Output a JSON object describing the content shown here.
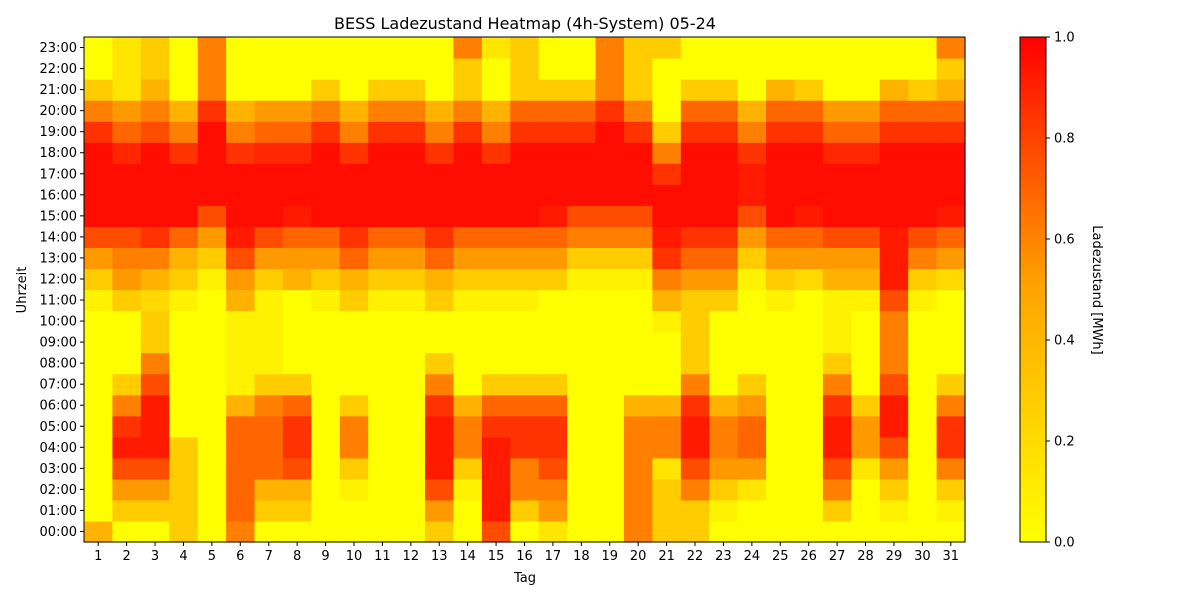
{
  "chart_data": {
    "type": "heatmap",
    "title": "BESS Ladezustand Heatmap (4h-System) 05-24",
    "xlabel": "Tag",
    "ylabel": "Uhrzeit",
    "colorbar_label": "Ladezustand [MWh]",
    "colormap": [
      "#ffff00",
      "#ffa500",
      "#ff0000"
    ],
    "value_range": [
      0,
      1
    ],
    "colorbar_ticks": [
      "0.0",
      "0.2",
      "0.4",
      "0.6",
      "0.8",
      "1.0"
    ],
    "x_ticks": [
      "1",
      "2",
      "3",
      "4",
      "5",
      "6",
      "7",
      "8",
      "9",
      "10",
      "11",
      "12",
      "13",
      "14",
      "15",
      "16",
      "17",
      "18",
      "19",
      "20",
      "21",
      "22",
      "23",
      "24",
      "25",
      "26",
      "27",
      "28",
      "29",
      "30",
      "31"
    ],
    "y_ticks": [
      "00:00",
      "01:00",
      "02:00",
      "03:00",
      "04:00",
      "05:00",
      "06:00",
      "07:00",
      "08:00",
      "09:00",
      "10:00",
      "11:00",
      "12:00",
      "13:00",
      "14:00",
      "15:00",
      "16:00",
      "17:00",
      "18:00",
      "19:00",
      "20:00",
      "21:00",
      "22:00",
      "23:00"
    ],
    "values": [
      [
        0.3,
        0.0,
        0.0,
        0.2,
        0.0,
        0.5,
        0.0,
        0.0,
        0.0,
        0.0,
        0.0,
        0.0,
        0.2,
        0.0,
        0.7,
        0.0,
        0.1,
        0.0,
        0.0,
        0.5,
        0.2,
        0.2,
        0.0,
        0.0,
        0.0,
        0.0,
        0.0,
        0.0,
        0.0,
        0.0,
        0.0
      ],
      [
        0.0,
        0.2,
        0.2,
        0.2,
        0.0,
        0.6,
        0.2,
        0.2,
        0.0,
        0.0,
        0.0,
        0.0,
        0.4,
        0.0,
        0.9,
        0.2,
        0.4,
        0.0,
        0.0,
        0.5,
        0.2,
        0.2,
        0.05,
        0.0,
        0.0,
        0.0,
        0.2,
        0.0,
        0.05,
        0.0,
        0.05
      ],
      [
        0.0,
        0.4,
        0.4,
        0.2,
        0.0,
        0.6,
        0.3,
        0.3,
        0.0,
        0.05,
        0.0,
        0.0,
        0.7,
        0.05,
        0.9,
        0.5,
        0.5,
        0.0,
        0.0,
        0.5,
        0.2,
        0.5,
        0.2,
        0.1,
        0.0,
        0.0,
        0.5,
        0.0,
        0.2,
        0.0,
        0.2
      ],
      [
        0.0,
        0.7,
        0.7,
        0.2,
        0.0,
        0.6,
        0.6,
        0.7,
        0.0,
        0.2,
        0.0,
        0.0,
        0.9,
        0.2,
        0.9,
        0.5,
        0.7,
        0.0,
        0.0,
        0.5,
        0.1,
        0.7,
        0.4,
        0.4,
        0.0,
        0.0,
        0.7,
        0.1,
        0.4,
        0.0,
        0.5
      ],
      [
        0.0,
        0.9,
        0.9,
        0.2,
        0.0,
        0.6,
        0.6,
        0.8,
        0.0,
        0.5,
        0.0,
        0.0,
        0.9,
        0.5,
        0.9,
        0.8,
        0.8,
        0.0,
        0.0,
        0.5,
        0.5,
        0.9,
        0.5,
        0.6,
        0.0,
        0.0,
        0.9,
        0.4,
        0.7,
        0.0,
        0.8
      ],
      [
        0.0,
        0.8,
        0.9,
        0.0,
        0.0,
        0.6,
        0.6,
        0.8,
        0.0,
        0.5,
        0.0,
        0.0,
        0.9,
        0.5,
        0.8,
        0.8,
        0.8,
        0.0,
        0.0,
        0.5,
        0.5,
        0.9,
        0.5,
        0.6,
        0.0,
        0.0,
        0.9,
        0.4,
        0.9,
        0.0,
        0.8
      ],
      [
        0.0,
        0.5,
        0.9,
        0.0,
        0.0,
        0.3,
        0.5,
        0.6,
        0.0,
        0.2,
        0.0,
        0.0,
        0.8,
        0.3,
        0.6,
        0.6,
        0.6,
        0.0,
        0.0,
        0.3,
        0.3,
        0.8,
        0.3,
        0.4,
        0.0,
        0.0,
        0.8,
        0.2,
        0.9,
        0.0,
        0.5
      ],
      [
        0.0,
        0.2,
        0.7,
        0.0,
        0.0,
        0.05,
        0.2,
        0.2,
        0.0,
        0.0,
        0.0,
        0.0,
        0.5,
        0.0,
        0.2,
        0.2,
        0.2,
        0.0,
        0.0,
        0.0,
        0.0,
        0.5,
        0.0,
        0.2,
        0.0,
        0.0,
        0.5,
        0.0,
        0.7,
        0.0,
        0.2
      ],
      [
        0.0,
        0.0,
        0.5,
        0.0,
        0.0,
        0.05,
        0.05,
        0.0,
        0.0,
        0.0,
        0.0,
        0.0,
        0.2,
        0.0,
        0.0,
        0.0,
        0.0,
        0.0,
        0.0,
        0.0,
        0.0,
        0.2,
        0.0,
        0.0,
        0.0,
        0.0,
        0.2,
        0.0,
        0.5,
        0.0,
        0.0
      ],
      [
        0.0,
        0.0,
        0.2,
        0.0,
        0.0,
        0.05,
        0.05,
        0.0,
        0.0,
        0.0,
        0.0,
        0.0,
        0.0,
        0.0,
        0.0,
        0.0,
        0.0,
        0.0,
        0.0,
        0.0,
        0.0,
        0.2,
        0.0,
        0.0,
        0.0,
        0.0,
        0.05,
        0.0,
        0.5,
        0.0,
        0.0
      ],
      [
        0.0,
        0.0,
        0.2,
        0.0,
        0.0,
        0.05,
        0.05,
        0.0,
        0.0,
        0.0,
        0.0,
        0.0,
        0.0,
        0.0,
        0.0,
        0.0,
        0.0,
        0.0,
        0.0,
        0.0,
        0.05,
        0.2,
        0.0,
        0.0,
        0.0,
        0.0,
        0.05,
        0.0,
        0.5,
        0.0,
        0.0
      ],
      [
        0.05,
        0.2,
        0.15,
        0.05,
        0.0,
        0.3,
        0.05,
        0.0,
        0.05,
        0.2,
        0.05,
        0.05,
        0.2,
        0.05,
        0.05,
        0.05,
        0.0,
        0.0,
        0.0,
        0.0,
        0.3,
        0.2,
        0.2,
        0.0,
        0.05,
        0.0,
        0.05,
        0.05,
        0.7,
        0.05,
        0.0
      ],
      [
        0.2,
        0.4,
        0.3,
        0.2,
        0.05,
        0.4,
        0.2,
        0.3,
        0.2,
        0.3,
        0.2,
        0.2,
        0.3,
        0.2,
        0.2,
        0.2,
        0.2,
        0.05,
        0.05,
        0.05,
        0.5,
        0.4,
        0.4,
        0.05,
        0.2,
        0.15,
        0.3,
        0.3,
        0.9,
        0.2,
        0.15
      ],
      [
        0.4,
        0.5,
        0.5,
        0.3,
        0.2,
        0.7,
        0.4,
        0.4,
        0.4,
        0.6,
        0.4,
        0.4,
        0.6,
        0.4,
        0.4,
        0.4,
        0.4,
        0.2,
        0.2,
        0.2,
        0.8,
        0.6,
        0.6,
        0.2,
        0.4,
        0.4,
        0.4,
        0.4,
        0.9,
        0.5,
        0.4
      ],
      [
        0.7,
        0.7,
        0.8,
        0.6,
        0.4,
        0.9,
        0.7,
        0.6,
        0.6,
        0.8,
        0.6,
        0.6,
        0.8,
        0.6,
        0.6,
        0.6,
        0.6,
        0.5,
        0.5,
        0.5,
        0.9,
        0.8,
        0.8,
        0.4,
        0.6,
        0.6,
        0.7,
        0.7,
        0.9,
        0.7,
        0.6
      ],
      [
        0.95,
        0.95,
        0.95,
        0.95,
        0.7,
        0.95,
        0.95,
        0.9,
        0.95,
        0.95,
        0.95,
        0.95,
        0.95,
        0.95,
        0.95,
        0.95,
        0.9,
        0.7,
        0.7,
        0.7,
        0.95,
        0.95,
        0.95,
        0.7,
        0.95,
        0.9,
        0.95,
        0.95,
        0.95,
        0.95,
        0.9
      ],
      [
        0.95,
        0.95,
        0.95,
        0.95,
        0.95,
        0.95,
        0.95,
        0.95,
        0.95,
        0.95,
        0.95,
        0.95,
        0.95,
        0.95,
        0.95,
        0.95,
        0.95,
        0.95,
        0.95,
        0.95,
        0.95,
        0.95,
        0.95,
        0.9,
        0.95,
        0.95,
        0.95,
        0.95,
        0.95,
        0.95,
        0.95
      ],
      [
        0.95,
        0.95,
        0.95,
        0.95,
        0.95,
        0.95,
        0.95,
        0.95,
        0.95,
        0.95,
        0.95,
        0.95,
        0.95,
        0.95,
        0.95,
        0.95,
        0.95,
        0.95,
        0.95,
        0.95,
        0.8,
        0.95,
        0.95,
        0.9,
        0.95,
        0.95,
        0.95,
        0.95,
        0.95,
        0.95,
        0.95
      ],
      [
        0.95,
        0.85,
        0.95,
        0.8,
        0.95,
        0.8,
        0.85,
        0.85,
        0.95,
        0.8,
        0.95,
        0.95,
        0.8,
        0.95,
        0.8,
        0.95,
        0.95,
        0.95,
        0.95,
        0.95,
        0.5,
        0.95,
        0.95,
        0.8,
        0.95,
        0.95,
        0.85,
        0.85,
        0.95,
        0.95,
        0.95
      ],
      [
        0.8,
        0.6,
        0.7,
        0.5,
        0.95,
        0.5,
        0.6,
        0.6,
        0.8,
        0.5,
        0.8,
        0.8,
        0.5,
        0.8,
        0.5,
        0.8,
        0.8,
        0.8,
        0.95,
        0.8,
        0.2,
        0.8,
        0.8,
        0.5,
        0.8,
        0.8,
        0.6,
        0.6,
        0.8,
        0.8,
        0.8
      ],
      [
        0.5,
        0.4,
        0.5,
        0.3,
        0.8,
        0.3,
        0.4,
        0.4,
        0.5,
        0.3,
        0.5,
        0.5,
        0.3,
        0.5,
        0.3,
        0.6,
        0.6,
        0.6,
        0.8,
        0.5,
        0.0,
        0.6,
        0.6,
        0.3,
        0.6,
        0.6,
        0.4,
        0.4,
        0.6,
        0.6,
        0.6
      ],
      [
        0.2,
        0.1,
        0.3,
        0.0,
        0.5,
        0.0,
        0.0,
        0.0,
        0.2,
        0.0,
        0.2,
        0.2,
        0.0,
        0.2,
        0.0,
        0.2,
        0.2,
        0.2,
        0.5,
        0.2,
        0.0,
        0.2,
        0.2,
        0.0,
        0.3,
        0.2,
        0.0,
        0.0,
        0.3,
        0.2,
        0.3
      ],
      [
        0.0,
        0.1,
        0.2,
        0.0,
        0.5,
        0.0,
        0.0,
        0.0,
        0.0,
        0.0,
        0.0,
        0.0,
        0.0,
        0.2,
        0.0,
        0.2,
        0.0,
        0.0,
        0.5,
        0.2,
        0.0,
        0.0,
        0.0,
        0.0,
        0.0,
        0.0,
        0.0,
        0.0,
        0.0,
        0.0,
        0.2
      ],
      [
        0.0,
        0.1,
        0.2,
        0.0,
        0.5,
        0.0,
        0.0,
        0.0,
        0.0,
        0.0,
        0.0,
        0.0,
        0.0,
        0.5,
        0.1,
        0.2,
        0.0,
        0.0,
        0.5,
        0.2,
        0.2,
        0.0,
        0.0,
        0.0,
        0.0,
        0.0,
        0.0,
        0.0,
        0.0,
        0.0,
        0.5
      ]
    ]
  }
}
